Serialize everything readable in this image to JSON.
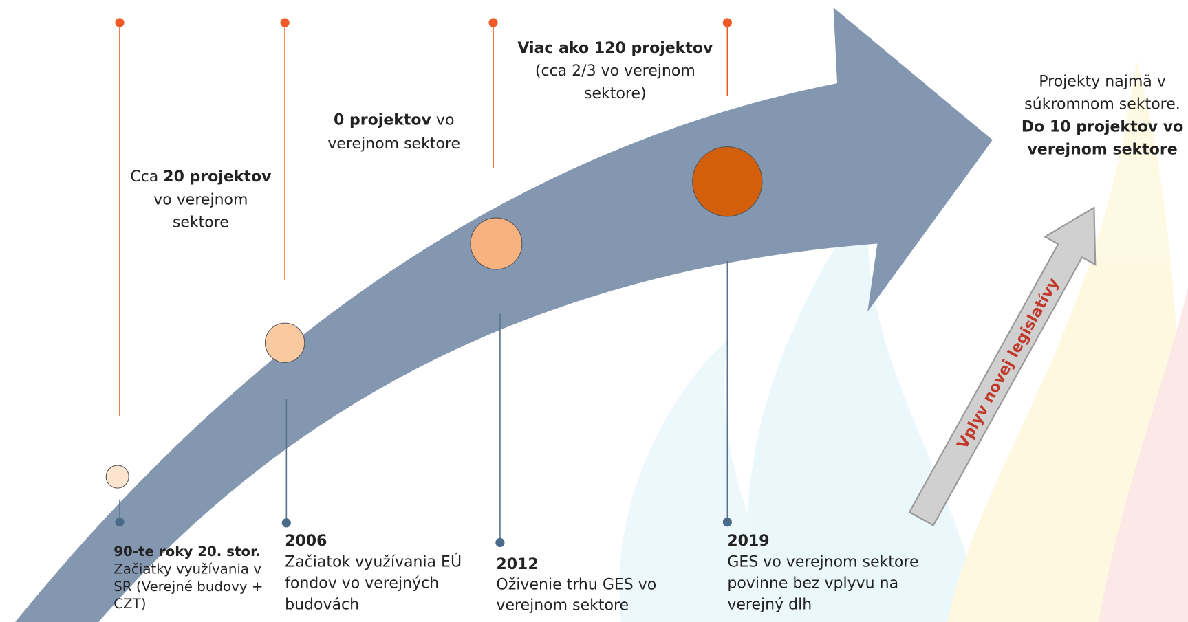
{
  "milestones": [
    {
      "date": "90-te roky 20. stor.",
      "description": [
        "Začiatky využívania v",
        "SR (Verejné budovy +",
        "CZT)"
      ]
    },
    {
      "date": "2006",
      "description": [
        "Začiatok využívania EÚ",
        "fondov vo verejných",
        "budovách"
      ]
    },
    {
      "date": "2012",
      "description": [
        "Oživenie trhu GES vo",
        "verejnom sektore"
      ]
    },
    {
      "date": "2019",
      "description": [
        "GES vo verejnom sektore",
        "povinne bez vplyvu na",
        "verejný dlh"
      ]
    }
  ],
  "notes": [
    {
      "lines": [
        [
          {
            "text": "Cca ",
            "bold": false
          },
          {
            "text": "20 projektov",
            "bold": true
          }
        ],
        [
          {
            "text": "vo verejnom",
            "bold": false
          }
        ],
        [
          {
            "text": "sektore",
            "bold": false
          }
        ]
      ]
    },
    {
      "lines": [
        [
          {
            "text": "0 projektov",
            "bold": true
          },
          {
            "text": " vo",
            "bold": false
          }
        ],
        [
          {
            "text": "verejnom sektore",
            "bold": false
          }
        ]
      ]
    },
    {
      "lines": [
        [
          {
            "text": "Viac ako 120 projektov",
            "bold": true
          }
        ],
        [
          {
            "text": "(cca 2/3 vo verejnom",
            "bold": false
          }
        ],
        [
          {
            "text": "sektore)",
            "bold": false
          }
        ]
      ]
    },
    {
      "lines": [
        [
          {
            "text": "Projekty najmä v",
            "bold": false
          }
        ],
        [
          {
            "text": "súkromnom sektore.",
            "bold": false
          }
        ],
        [
          {
            "text": "Do 10 projektov vo",
            "bold": true
          }
        ],
        [
          {
            "text": "verejnom sektore",
            "bold": true
          }
        ]
      ]
    }
  ],
  "legislation_label": "Vplyv novej legislatívy"
}
